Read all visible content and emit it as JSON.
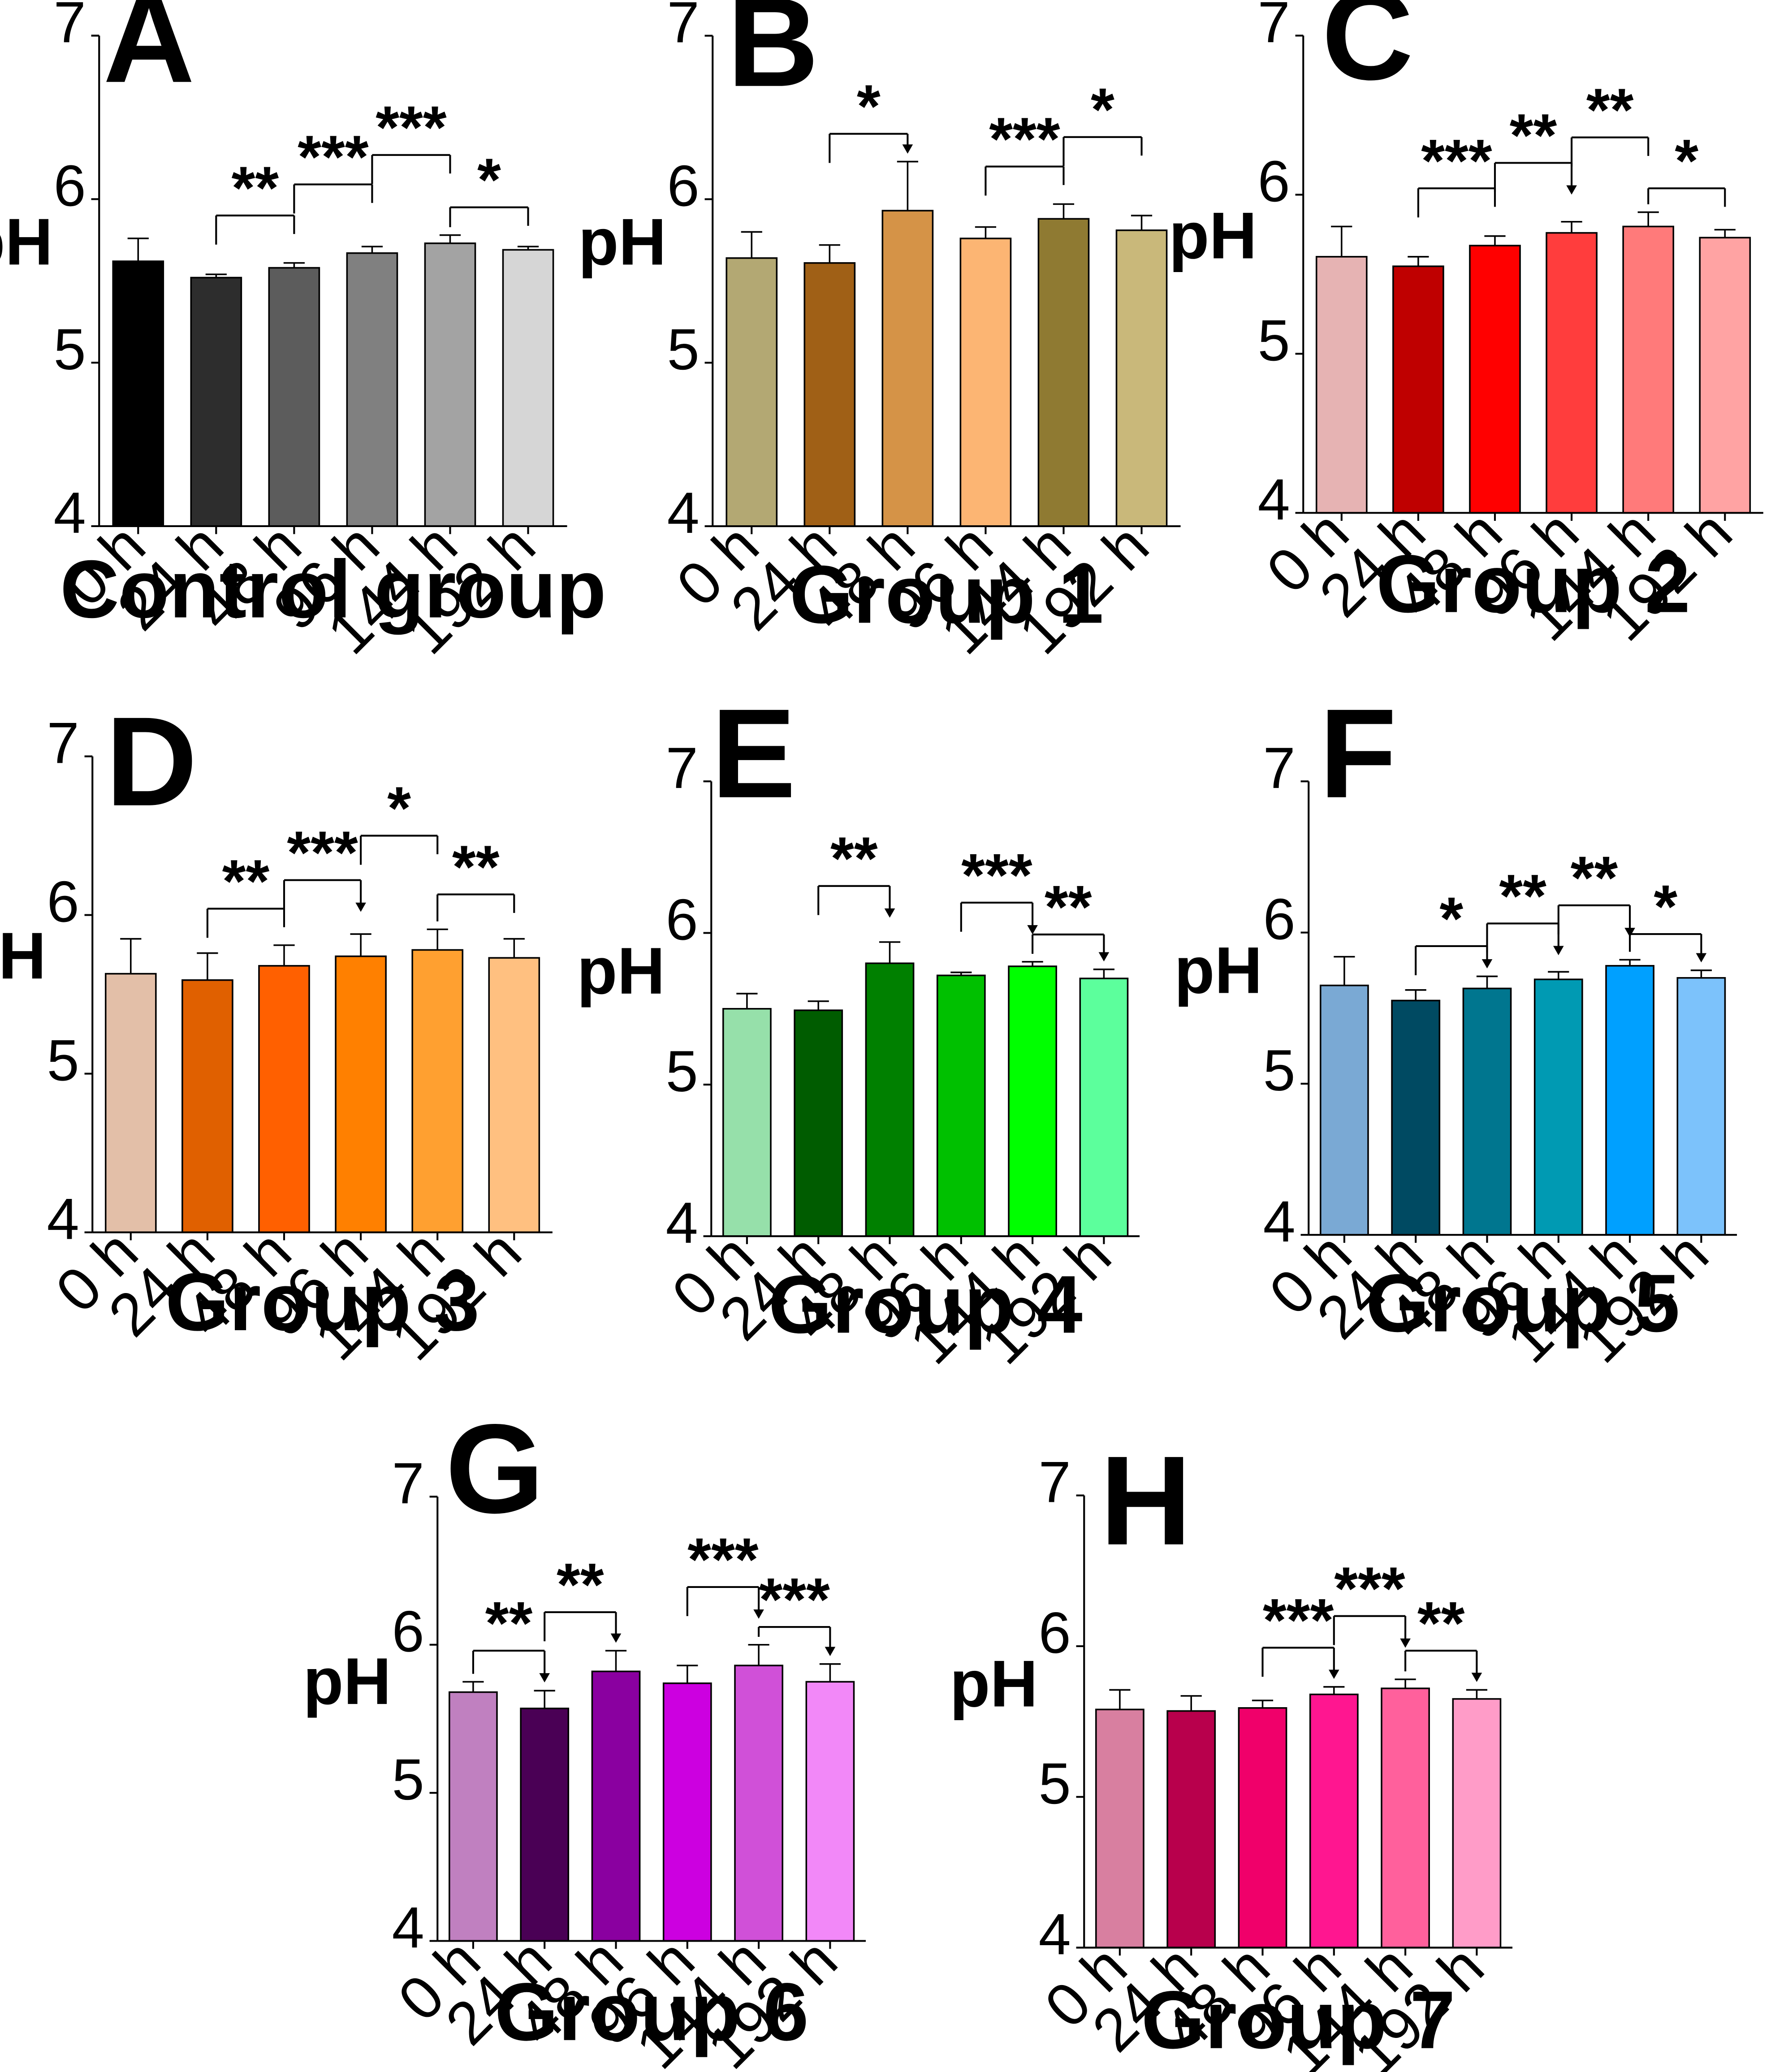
{
  "chart_data": [
    {
      "type": "bar",
      "panel": "A",
      "xlabel": "Control group",
      "ylabel": "pH",
      "ylim": [
        4,
        7
      ],
      "yticks": [
        "4",
        "5",
        "6",
        "7"
      ],
      "categories": [
        "0 h",
        "24 h",
        "48 h",
        "96 h",
        "144 h",
        "192 h"
      ],
      "values": [
        5.62,
        5.52,
        5.58,
        5.67,
        5.73,
        5.69
      ],
      "errors": [
        0.14,
        0.02,
        0.03,
        0.04,
        0.05,
        0.02
      ],
      "colors": [
        "#000000",
        "#2d2d2d",
        "#5c5c5c",
        "#808080",
        "#a3a3a3",
        "#d6d6d6"
      ],
      "brackets": [
        {
          "from": 1,
          "to": 2,
          "y": 5.9,
          "label": "**",
          "arrow": false
        },
        {
          "from": 2,
          "to": 3,
          "y": 6.09,
          "label": "***",
          "arrow": false
        },
        {
          "from": 3,
          "to": 4,
          "y": 6.27,
          "label": "***",
          "arrow": false
        },
        {
          "from": 4,
          "to": 5,
          "y": 5.95,
          "label": "*",
          "arrow": false
        }
      ]
    },
    {
      "type": "bar",
      "panel": "B",
      "xlabel": "Group 1",
      "ylabel": "pH",
      "ylim": [
        4,
        7
      ],
      "yticks": [
        "4",
        "5",
        "6",
        "7"
      ],
      "categories": [
        "0 h",
        "24 h",
        "48 h",
        "96 h",
        "144 h",
        "192 h"
      ],
      "values": [
        5.64,
        5.61,
        5.93,
        5.76,
        5.88,
        5.81
      ],
      "errors": [
        0.16,
        0.11,
        0.3,
        0.07,
        0.09,
        0.09
      ],
      "colors": [
        "#b3a873",
        "#a06016",
        "#d59347",
        "#fcb573",
        "#8f7a32",
        "#c9b87a"
      ],
      "brackets": [
        {
          "from": 1,
          "to": 2,
          "y": 6.4,
          "label": "*",
          "arrow": true
        },
        {
          "from": 3,
          "to": 4,
          "y": 6.2,
          "label": "***",
          "arrow": false
        },
        {
          "from": 4,
          "to": 5,
          "y": 6.38,
          "label": "*",
          "arrow": false
        }
      ]
    },
    {
      "type": "bar",
      "panel": "C",
      "xlabel": "Group 2",
      "ylabel": "pH",
      "ylim": [
        4,
        7
      ],
      "yticks": [
        "4",
        "5",
        "6",
        "7"
      ],
      "categories": [
        "0 h",
        "24 h",
        "48 h",
        "96 h",
        "144 h",
        "192 h"
      ],
      "values": [
        5.61,
        5.55,
        5.68,
        5.76,
        5.8,
        5.73
      ],
      "errors": [
        0.19,
        0.06,
        0.06,
        0.07,
        0.09,
        0.05
      ],
      "colors": [
        "#e6b3b3",
        "#bf0000",
        "#ff0000",
        "#ff3d3d",
        "#ff7a7a",
        "#ffa3a3"
      ],
      "brackets": [
        {
          "from": 1,
          "to": 2,
          "y": 6.04,
          "label": "***",
          "arrow": false
        },
        {
          "from": 2,
          "to": 3,
          "y": 6.2,
          "label": "**",
          "arrow": true
        },
        {
          "from": 3,
          "to": 4,
          "y": 6.36,
          "label": "**",
          "arrow": false
        },
        {
          "from": 4,
          "to": 5,
          "y": 6.04,
          "label": "*",
          "arrow": false
        }
      ]
    },
    {
      "type": "bar",
      "panel": "D",
      "xlabel": "Group 3",
      "ylabel": "pH",
      "ylim": [
        4,
        7
      ],
      "yticks": [
        "4",
        "5",
        "6",
        "7"
      ],
      "categories": [
        "0 h",
        "24 h",
        "48 h",
        "96 h",
        "144 h",
        "192 h"
      ],
      "values": [
        5.63,
        5.59,
        5.68,
        5.74,
        5.78,
        5.73
      ],
      "errors": [
        0.22,
        0.17,
        0.13,
        0.14,
        0.13,
        0.12
      ],
      "colors": [
        "#e3bfa8",
        "#e06000",
        "#ff6000",
        "#ff8000",
        "#ffa030",
        "#ffc080"
      ],
      "brackets": [
        {
          "from": 1,
          "to": 2,
          "y": 6.04,
          "label": "**",
          "arrow": false
        },
        {
          "from": 2,
          "to": 3,
          "y": 6.22,
          "label": "***",
          "arrow": true
        },
        {
          "from": 3,
          "to": 4,
          "y": 6.5,
          "label": "*",
          "arrow": false
        },
        {
          "from": 4,
          "to": 5,
          "y": 6.13,
          "label": "**",
          "arrow": false
        }
      ]
    },
    {
      "type": "bar",
      "panel": "E",
      "xlabel": "Group 4",
      "ylabel": "pH",
      "ylim": [
        4,
        7
      ],
      "yticks": [
        "4",
        "5",
        "6",
        "7"
      ],
      "categories": [
        "0 h",
        "24 h",
        "48 h",
        "96 h",
        "144 h",
        "192 h"
      ],
      "values": [
        5.5,
        5.49,
        5.8,
        5.72,
        5.78,
        5.7
      ],
      "errors": [
        0.1,
        0.06,
        0.14,
        0.02,
        0.03,
        0.06
      ],
      "colors": [
        "#96e0aa",
        "#005c00",
        "#008000",
        "#00c000",
        "#00ff00",
        "#5cff9c"
      ],
      "brackets": [
        {
          "from": 1,
          "to": 2,
          "y": 6.31,
          "label": "**",
          "arrow": true
        },
        {
          "from": 3,
          "to": 4,
          "y": 6.2,
          "label": "***",
          "arrow": true
        },
        {
          "from": 4,
          "to": 5,
          "y": 5.99,
          "label": "**",
          "arrow": true
        }
      ]
    },
    {
      "type": "bar",
      "panel": "F",
      "xlabel": "Group 5",
      "ylabel": "pH",
      "ylim": [
        4,
        7
      ],
      "yticks": [
        "4",
        "5",
        "6",
        "7"
      ],
      "categories": [
        "0 h",
        "24 h",
        "48 h",
        "96 h",
        "144 h",
        "192 h"
      ],
      "values": [
        5.65,
        5.55,
        5.63,
        5.69,
        5.78,
        5.7
      ],
      "errors": [
        0.19,
        0.07,
        0.08,
        0.05,
        0.04,
        0.05
      ],
      "colors": [
        "#7aa9d4",
        "#004a62",
        "#00768f",
        "#009ab3",
        "#00a0ff",
        "#7cc2fb"
      ],
      "brackets": [
        {
          "from": 1,
          "to": 2,
          "y": 5.91,
          "label": "*",
          "arrow": true
        },
        {
          "from": 2,
          "to": 3,
          "y": 6.06,
          "label": "**",
          "arrow": true
        },
        {
          "from": 3,
          "to": 4,
          "y": 6.18,
          "label": "**",
          "arrow": true
        },
        {
          "from": 4,
          "to": 5,
          "y": 5.99,
          "label": "*",
          "arrow": true
        }
      ]
    },
    {
      "type": "bar",
      "panel": "G",
      "xlabel": "Group 6",
      "ylabel": "pH",
      "ylim": [
        4,
        7
      ],
      "yticks": [
        "4",
        "5",
        "6",
        "7"
      ],
      "categories": [
        "0 h",
        "24 h",
        "48 h",
        "96 h",
        "144 h",
        "192 h"
      ],
      "values": [
        5.68,
        5.57,
        5.82,
        5.74,
        5.86,
        5.75
      ],
      "errors": [
        0.07,
        0.12,
        0.14,
        0.12,
        0.14,
        0.12
      ],
      "colors": [
        "#c080c0",
        "#4a0055",
        "#8a00a0",
        "#cc00e0",
        "#d050d8",
        "#f288f8"
      ],
      "brackets": [
        {
          "from": 0,
          "to": 1,
          "y": 5.96,
          "label": "**",
          "arrow": true
        },
        {
          "from": 1,
          "to": 2,
          "y": 6.22,
          "label": "**",
          "arrow": true
        },
        {
          "from": 3,
          "to": 4,
          "y": 6.39,
          "label": "***",
          "arrow": true
        },
        {
          "from": 4,
          "to": 5,
          "y": 6.12,
          "label": "***",
          "arrow": true
        }
      ]
    },
    {
      "type": "bar",
      "panel": "H",
      "xlabel": "Group 7",
      "ylabel": "pH",
      "ylim": [
        4,
        7
      ],
      "yticks": [
        "4",
        "5",
        "6",
        "7"
      ],
      "categories": [
        "0 h",
        "24 h",
        "48 h",
        "96 h",
        "144 h",
        "192 h"
      ],
      "values": [
        5.58,
        5.57,
        5.59,
        5.68,
        5.72,
        5.65
      ],
      "errors": [
        0.13,
        0.1,
        0.05,
        0.05,
        0.06,
        0.06
      ],
      "colors": [
        "#d87fa0",
        "#b8004c",
        "#f0006a",
        "#ff1690",
        "#ff609c",
        "#ff9cc8"
      ],
      "brackets": [
        {
          "from": 2,
          "to": 3,
          "y": 5.99,
          "label": "***",
          "arrow": true
        },
        {
          "from": 3,
          "to": 4,
          "y": 6.2,
          "label": "***",
          "arrow": true
        },
        {
          "from": 4,
          "to": 5,
          "y": 5.97,
          "label": "**",
          "arrow": true
        }
      ]
    }
  ]
}
